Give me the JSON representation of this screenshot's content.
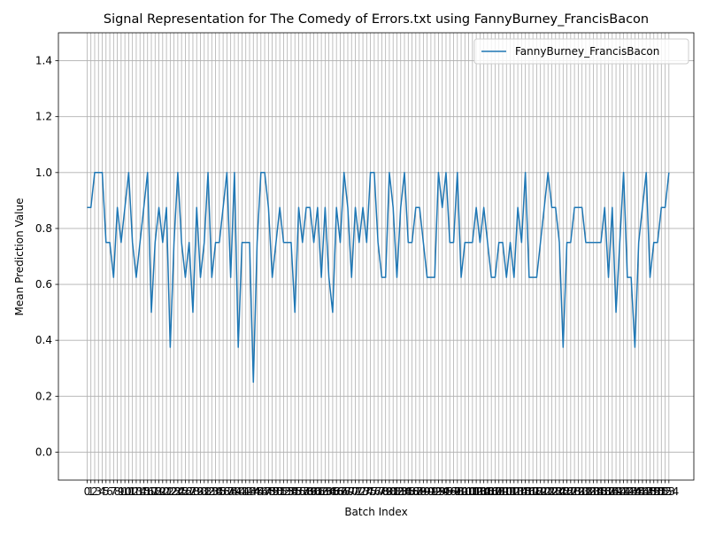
{
  "chart_data": {
    "type": "line",
    "title": "Signal Representation for The Comedy of Errors.txt using FannyBurney_FrancisBacon",
    "xlabel": "Batch Index",
    "ylabel": "Mean Prediction Value",
    "xlim": [
      -7.6,
      160.6
    ],
    "ylim": [
      -0.1,
      1.5
    ],
    "yticks": [
      0.0,
      0.2,
      0.4,
      0.6,
      0.8,
      1.0,
      1.2,
      1.4
    ],
    "grid": true,
    "legend": "top-right",
    "series": [
      {
        "name": "FannyBurney_FrancisBacon",
        "color": "#1f77b4",
        "values": [
          0.875,
          0.875,
          1.0,
          1.0,
          1.0,
          0.75,
          0.75,
          0.625,
          0.875,
          0.75,
          0.875,
          1.0,
          0.75,
          0.625,
          0.75,
          0.875,
          1.0,
          0.5,
          0.75,
          0.875,
          0.75,
          0.875,
          0.375,
          0.75,
          1.0,
          0.75,
          0.625,
          0.75,
          0.5,
          0.875,
          0.625,
          0.75,
          1.0,
          0.625,
          0.75,
          0.75,
          0.875,
          1.0,
          0.625,
          1.0,
          0.375,
          0.75,
          0.75,
          0.75,
          0.25,
          0.75,
          1.0,
          1.0,
          0.875,
          0.625,
          0.75,
          0.875,
          0.75,
          0.75,
          0.75,
          0.5,
          0.875,
          0.75,
          0.875,
          0.875,
          0.75,
          0.875,
          0.625,
          0.875,
          0.625,
          0.5,
          0.875,
          0.75,
          1.0,
          0.875,
          0.625,
          0.875,
          0.75,
          0.875,
          0.75,
          1.0,
          1.0,
          0.75,
          0.625,
          0.625,
          1.0,
          0.875,
          0.625,
          0.875,
          1.0,
          0.75,
          0.75,
          0.875,
          0.875,
          0.75,
          0.625,
          0.625,
          0.625,
          1.0,
          0.875,
          1.0,
          0.75,
          0.75,
          1.0,
          0.625,
          0.75,
          0.75,
          0.75,
          0.875,
          0.75,
          0.875,
          0.75,
          0.625,
          0.625,
          0.75,
          0.75,
          0.625,
          0.75,
          0.625,
          0.875,
          0.75,
          1.0,
          0.625,
          0.625,
          0.625,
          0.75,
          0.875,
          1.0,
          0.875,
          0.875,
          0.75,
          0.375,
          0.75,
          0.75,
          0.875,
          0.875,
          0.875,
          0.75,
          0.75,
          0.75,
          0.75,
          0.75,
          0.875,
          0.625,
          0.875,
          0.5,
          0.75,
          1.0,
          0.625,
          0.625,
          0.375,
          0.75,
          0.875,
          1.0,
          0.625,
          0.75,
          0.75,
          0.875,
          0.875,
          1.0
        ]
      }
    ]
  }
}
